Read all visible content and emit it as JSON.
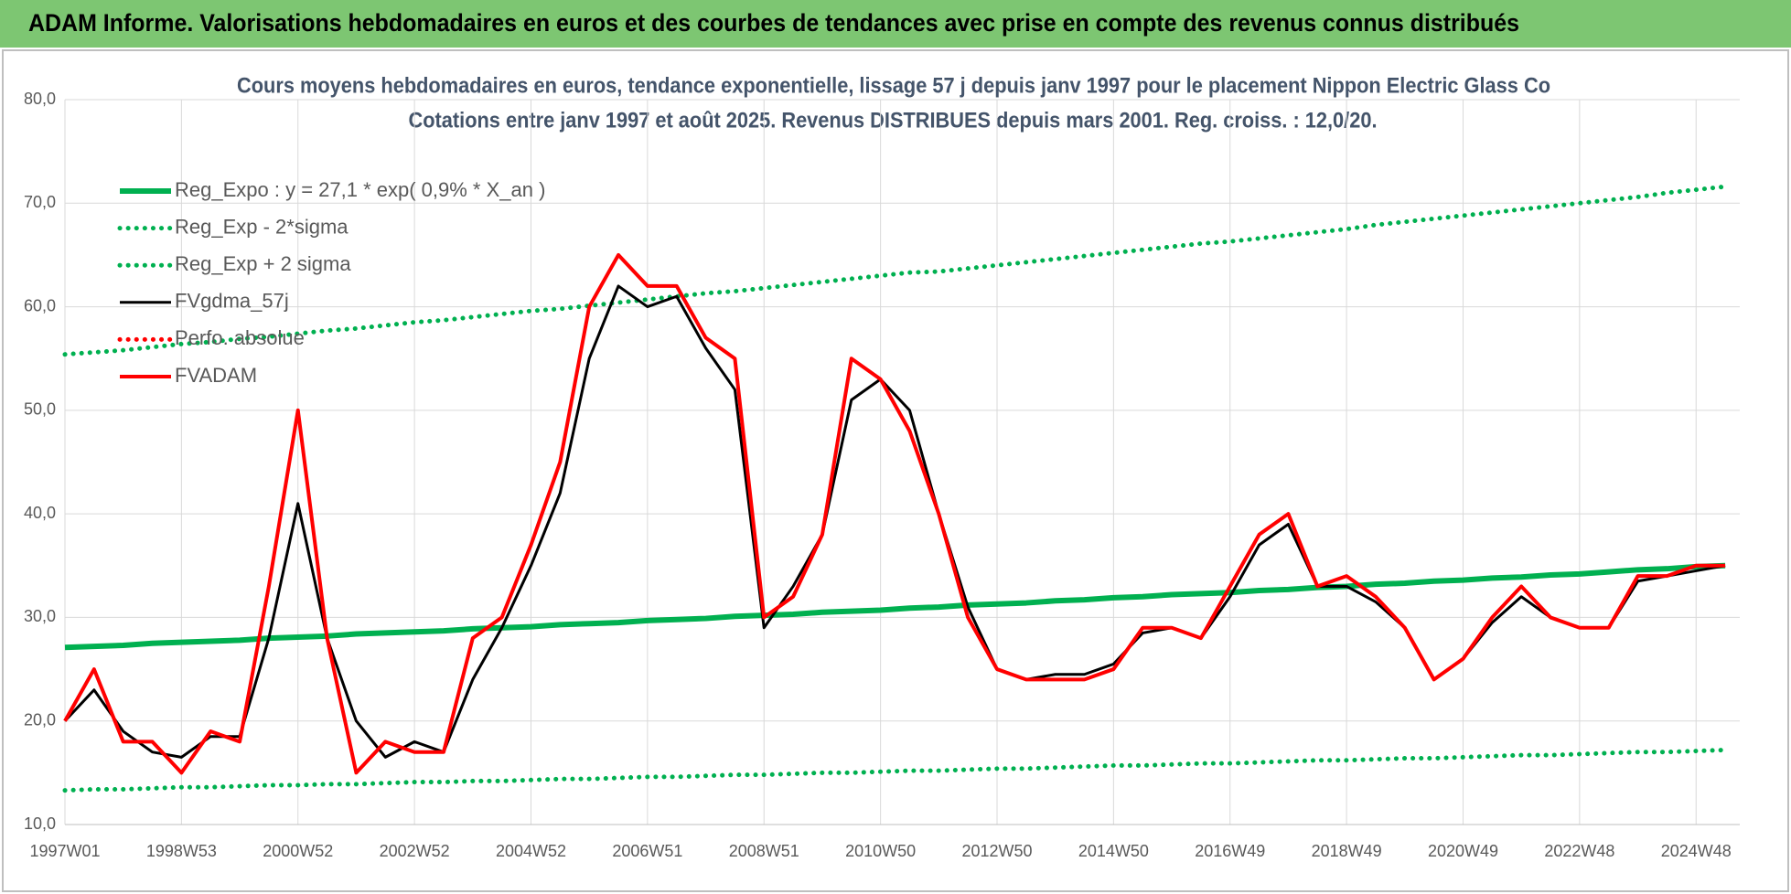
{
  "header": {
    "title": "ADAM Informe. Valorisations hebdomadaires en euros et des courbes de tendances avec prise en compte des revenus connus distribués"
  },
  "chart_data": {
    "type": "line",
    "title": "Cours moyens hebdomadaires en euros, tendance exponentielle, lissage 57 j depuis janv 1997 pour le placement Nippon Electric Glass Co",
    "subtitle": "Cotations entre janv 1997 et août 2025. Revenus DISTRIBUES depuis mars 2001. Reg. croiss. : 12,0/20.",
    "categories": [
      "1997W01",
      null,
      null,
      null,
      "1998W53",
      null,
      null,
      null,
      "2000W52",
      null,
      null,
      null,
      "2002W52",
      null,
      null,
      null,
      "2004W52",
      null,
      null,
      null,
      "2006W51",
      null,
      null,
      null,
      "2008W51",
      null,
      null,
      null,
      "2010W50",
      null,
      null,
      null,
      "2012W50",
      null,
      null,
      null,
      "2014W50",
      null,
      null,
      null,
      "2016W49",
      null,
      null,
      null,
      "2018W49",
      null,
      null,
      null,
      "2020W49",
      null,
      null,
      null,
      "2022W48",
      null,
      null,
      null,
      "2024W48",
      null
    ],
    "ylim": [
      10,
      80
    ],
    "yticks": [
      {
        "value": 10,
        "label": "10,0"
      },
      {
        "value": 20,
        "label": "20,0"
      },
      {
        "value": 30,
        "label": "30,0"
      },
      {
        "value": 40,
        "label": "40,0"
      },
      {
        "value": 50,
        "label": "50,0"
      },
      {
        "value": 60,
        "label": "60,0"
      },
      {
        "value": 70,
        "label": "70,0"
      },
      {
        "value": 80,
        "label": "80,0"
      }
    ],
    "grid": true,
    "legend": "upper left",
    "series": [
      {
        "name": "Reg_Expo : y = 27,1 * exp( 0,9% *  X_an )",
        "color": "#00b050",
        "style": "solid",
        "values": [
          27.1,
          27.2,
          27.3,
          27.5,
          27.6,
          27.7,
          27.8,
          28.0,
          28.1,
          28.2,
          28.4,
          28.5,
          28.6,
          28.7,
          28.9,
          29.0,
          29.1,
          29.3,
          29.4,
          29.5,
          29.7,
          29.8,
          29.9,
          30.1,
          30.2,
          30.3,
          30.5,
          30.6,
          30.7,
          30.9,
          31.0,
          31.2,
          31.3,
          31.4,
          31.6,
          31.7,
          31.9,
          32.0,
          32.2,
          32.3,
          32.4,
          32.6,
          32.7,
          32.9,
          33.0,
          33.2,
          33.3,
          33.5,
          33.6,
          33.8,
          33.9,
          34.1,
          34.2,
          34.4,
          34.6,
          34.7,
          34.9,
          35.0
        ]
      },
      {
        "name": "Reg_Exp - 2*sigma",
        "color": "#00b050",
        "style": "dotted",
        "values": [
          13.3,
          13.4,
          13.4,
          13.5,
          13.6,
          13.6,
          13.7,
          13.8,
          13.8,
          13.9,
          13.9,
          14.0,
          14.1,
          14.1,
          14.2,
          14.2,
          14.3,
          14.4,
          14.4,
          14.5,
          14.6,
          14.6,
          14.7,
          14.8,
          14.8,
          14.9,
          15.0,
          15.0,
          15.1,
          15.2,
          15.2,
          15.3,
          15.4,
          15.4,
          15.5,
          15.6,
          15.7,
          15.7,
          15.8,
          15.9,
          15.9,
          16.0,
          16.1,
          16.2,
          16.2,
          16.3,
          16.4,
          16.4,
          16.5,
          16.6,
          16.7,
          16.7,
          16.8,
          16.9,
          17.0,
          17.0,
          17.1,
          17.2
        ]
      },
      {
        "name": "Reg_Exp + 2 sigma",
        "color": "#00b050",
        "style": "dotted",
        "values": [
          55.4,
          55.6,
          55.8,
          56.1,
          56.4,
          56.6,
          56.9,
          57.1,
          57.4,
          57.7,
          57.9,
          58.2,
          58.5,
          58.7,
          59.0,
          59.3,
          59.6,
          59.8,
          60.1,
          60.4,
          60.7,
          61.0,
          61.3,
          61.5,
          61.8,
          62.1,
          62.4,
          62.7,
          63.0,
          63.3,
          63.4,
          63.7,
          64.0,
          64.3,
          64.6,
          64.9,
          65.2,
          65.5,
          65.8,
          66.1,
          66.3,
          66.6,
          66.9,
          67.2,
          67.5,
          67.9,
          68.2,
          68.5,
          68.8,
          69.1,
          69.4,
          69.7,
          70.0,
          70.3,
          70.6,
          71.0,
          71.3,
          71.6
        ]
      },
      {
        "name": "FVgdma_57j",
        "color": "#000000",
        "style": "solid",
        "values": [
          20,
          23,
          19,
          17,
          16.5,
          18.5,
          18.5,
          28,
          41,
          28,
          20,
          16.5,
          18,
          17,
          24,
          29,
          35,
          42,
          55,
          62,
          60,
          61,
          56,
          52,
          29,
          33,
          38,
          51,
          53,
          50,
          40,
          31,
          25,
          24,
          24.5,
          24.5,
          25.5,
          28.5,
          29,
          28,
          32,
          37,
          39,
          33,
          33,
          31.5,
          29,
          24,
          26,
          29.5,
          32,
          30,
          29,
          29,
          33.5,
          34,
          34.5,
          35
        ]
      },
      {
        "name": "Perfo. absolue",
        "color": "#ff0000",
        "style": "dotted",
        "values": [
          null,
          null,
          null,
          null,
          null,
          null,
          null,
          null,
          null,
          null,
          null,
          null,
          null,
          null,
          null,
          null,
          null,
          null,
          null,
          null,
          null,
          null,
          null,
          null,
          null,
          null,
          null,
          null,
          null,
          null,
          null,
          null,
          null,
          null,
          null,
          null,
          null,
          null,
          null,
          null,
          null,
          null,
          null,
          null,
          null,
          null,
          null,
          null,
          null,
          null,
          null,
          null,
          null,
          null,
          null,
          null,
          null,
          null
        ]
      },
      {
        "name": "FVADAM",
        "color": "#ff0000",
        "style": "solid",
        "values": [
          20,
          25,
          18,
          18,
          15,
          19,
          18,
          33,
          50,
          28,
          15,
          18,
          17,
          17,
          28,
          30,
          37,
          45,
          60,
          65,
          62,
          62,
          57,
          55,
          30,
          32,
          38,
          55,
          53,
          48,
          40,
          30,
          25,
          24,
          24,
          24,
          25,
          29,
          29,
          28,
          33,
          38,
          40,
          33,
          34,
          32,
          29,
          24,
          26,
          30,
          33,
          30,
          29,
          29,
          34,
          34,
          35,
          35
        ]
      }
    ]
  }
}
